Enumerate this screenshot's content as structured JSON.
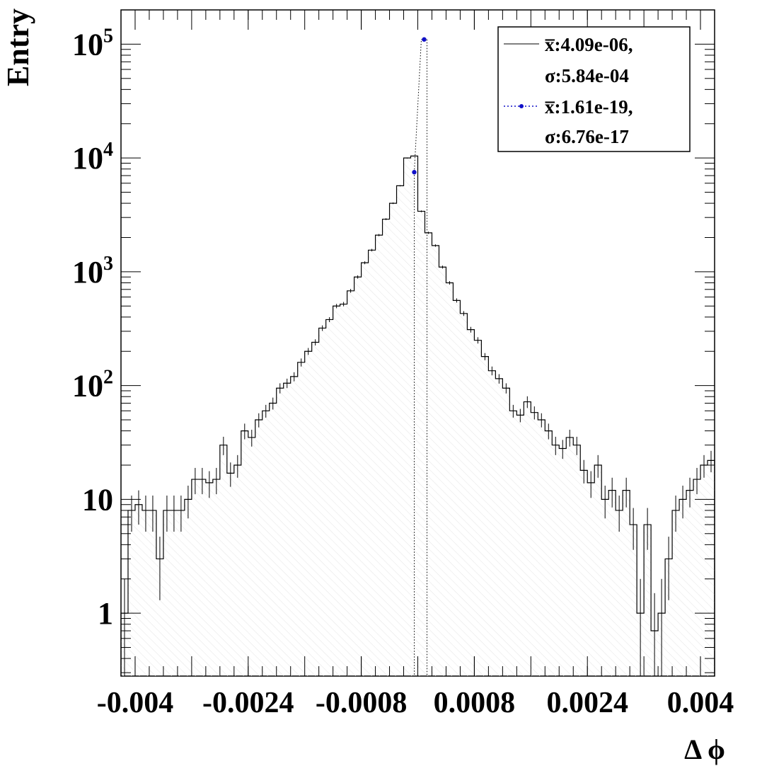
{
  "chart_data": {
    "type": "histogram",
    "xlabel": "Δ ϕ",
    "ylabel": "Entry",
    "xlim": [
      -0.0042,
      0.0042
    ],
    "ylim": [
      0.28,
      200000
    ],
    "yscale": "log",
    "grid": false,
    "legend_position": "top-right",
    "x_ticks": [
      -0.004,
      -0.0024,
      -0.0008,
      0.0008,
      0.0024,
      0.004
    ],
    "x_tick_labels": [
      "-0.004",
      "-0.0024",
      "-0.0008",
      "0.0008",
      "0.0024",
      "0.004"
    ],
    "y_ticks": [
      1,
      10,
      100,
      1000,
      10000,
      100000
    ],
    "y_tick_labels": [
      {
        "base": "1",
        "exp": ""
      },
      {
        "base": "10",
        "exp": ""
      },
      {
        "base": "10",
        "exp": "2"
      },
      {
        "base": "10",
        "exp": "3"
      },
      {
        "base": "10",
        "exp": "4"
      },
      {
        "base": "10",
        "exp": "5"
      }
    ],
    "series": [
      {
        "style": "solid step histogram with error bars and hatched fill",
        "color": "#000000",
        "legend_text": [
          "x̅:4.09e-06,",
          "σ:5.84e-04"
        ],
        "bin_width": 0.0001,
        "bin_centers": [
          -0.00415,
          -0.00405,
          -0.00395,
          -0.00385,
          -0.00375,
          -0.00365,
          -0.00355,
          -0.00345,
          -0.00335,
          -0.00325,
          -0.00315,
          -0.00305,
          -0.00295,
          -0.00285,
          -0.00275,
          -0.00265,
          -0.00255,
          -0.00245,
          -0.00235,
          -0.00225,
          -0.00215,
          -0.00205,
          -0.00195,
          -0.00185,
          -0.00175,
          -0.00165,
          -0.00155,
          -0.00145,
          -0.00135,
          -0.00125,
          -0.00115,
          -0.00105,
          -0.00095,
          -0.00085,
          -0.00075,
          -0.00065,
          -0.00055,
          -0.00045,
          -0.00035,
          -0.00025,
          -0.00015,
          -5e-05,
          5e-05,
          0.00015,
          0.00025,
          0.00035,
          0.00045,
          0.00055,
          0.00065,
          0.00075,
          0.00085,
          0.00095,
          0.00105,
          0.00115,
          0.00125,
          0.00135,
          0.00145,
          0.00155,
          0.00165,
          0.00175,
          0.00185,
          0.00195,
          0.00205,
          0.00215,
          0.00225,
          0.00235,
          0.00245,
          0.00255,
          0.00265,
          0.00275,
          0.00285,
          0.00295,
          0.00305,
          0.00315,
          0.00325,
          0.00335,
          0.00345,
          0.00355,
          0.00365,
          0.00375,
          0.00385,
          0.00395,
          0.00405,
          0.00415
        ],
        "values": [
          1,
          8,
          9,
          8,
          8,
          3,
          8,
          8,
          8,
          10,
          15,
          15,
          14,
          15,
          30,
          17,
          20,
          40,
          35,
          50,
          60,
          70,
          95,
          105,
          120,
          160,
          200,
          240,
          320,
          380,
          500,
          520,
          680,
          900,
          1200,
          1550,
          2100,
          2900,
          4000,
          5700,
          10000,
          10400,
          3400,
          2200,
          1700,
          1100,
          800,
          560,
          430,
          310,
          250,
          180,
          135,
          115,
          95,
          60,
          55,
          72,
          58,
          50,
          40,
          30,
          28,
          35,
          30,
          18,
          14,
          20,
          10,
          12,
          8,
          12,
          6,
          1,
          6,
          0.7,
          1,
          3,
          8,
          10,
          12,
          15,
          20,
          22
        ],
        "errors": [
          1,
          2.8,
          3,
          2.8,
          2.8,
          1.7,
          2.8,
          2.8,
          2.8,
          3.2,
          3.9,
          3.9,
          3.7,
          3.9,
          5.5,
          4.1,
          4.5,
          6.3,
          5.9,
          7.1,
          7.7,
          8.4,
          9.7,
          10,
          11,
          13,
          14,
          15,
          18,
          19,
          22,
          23,
          26,
          30,
          35,
          39,
          46,
          54,
          63,
          75,
          100,
          102,
          58,
          47,
          41,
          33,
          28,
          24,
          21,
          18,
          16,
          13,
          12,
          11,
          9.7,
          7.7,
          7.4,
          8.5,
          7.6,
          7.1,
          6.3,
          5.5,
          5.3,
          5.9,
          5.5,
          4.2,
          3.7,
          4.5,
          3.2,
          3.5,
          2.8,
          3.5,
          2.4,
          1,
          2.4,
          0.8,
          1,
          1.7,
          2.8,
          3.2,
          3.5,
          3.9,
          4.5,
          4.7
        ]
      },
      {
        "style": "dotted line with blue markers",
        "color": "#1010c8",
        "legend_text": [
          "x̅:1.61e-19,",
          "σ:6.76e-17"
        ],
        "points": [
          {
            "x": -5e-05,
            "y": 7500
          },
          {
            "x": 5e-05,
            "y": 110000
          }
        ]
      }
    ]
  }
}
